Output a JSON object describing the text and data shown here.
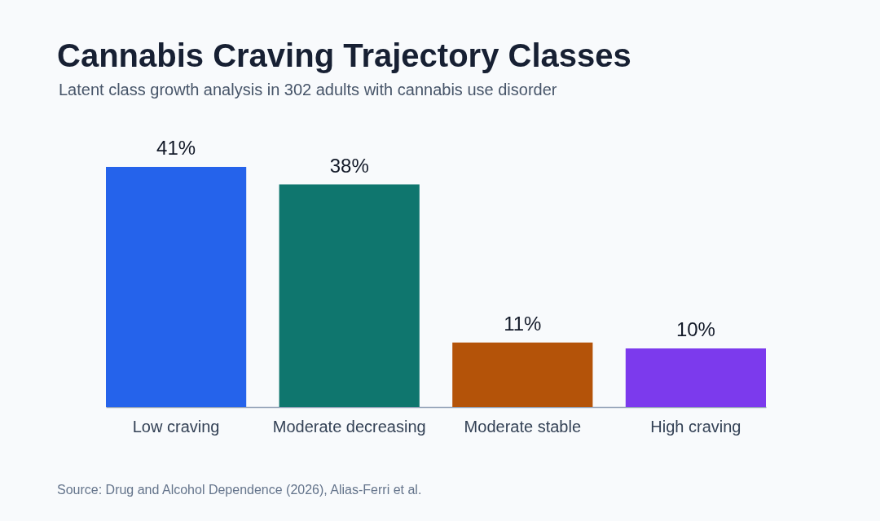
{
  "chart_data": {
    "type": "bar",
    "title": "Cannabis Craving Trajectory Classes",
    "subtitle": "Latent class growth analysis in 302 adults with cannabis use disorder",
    "categories": [
      "Low craving",
      "Moderate decreasing",
      "Moderate stable",
      "High craving"
    ],
    "values": [
      41,
      38,
      11,
      10
    ],
    "value_labels": [
      "41%",
      "38%",
      "11%",
      "10%"
    ],
    "colors": [
      "#2563eb",
      "#0f766e",
      "#b45309",
      "#7c3aed"
    ],
    "annotations": [
      "Source: Drug and Alcohol Dependence (2026), Alias-Ferri et al."
    ]
  }
}
